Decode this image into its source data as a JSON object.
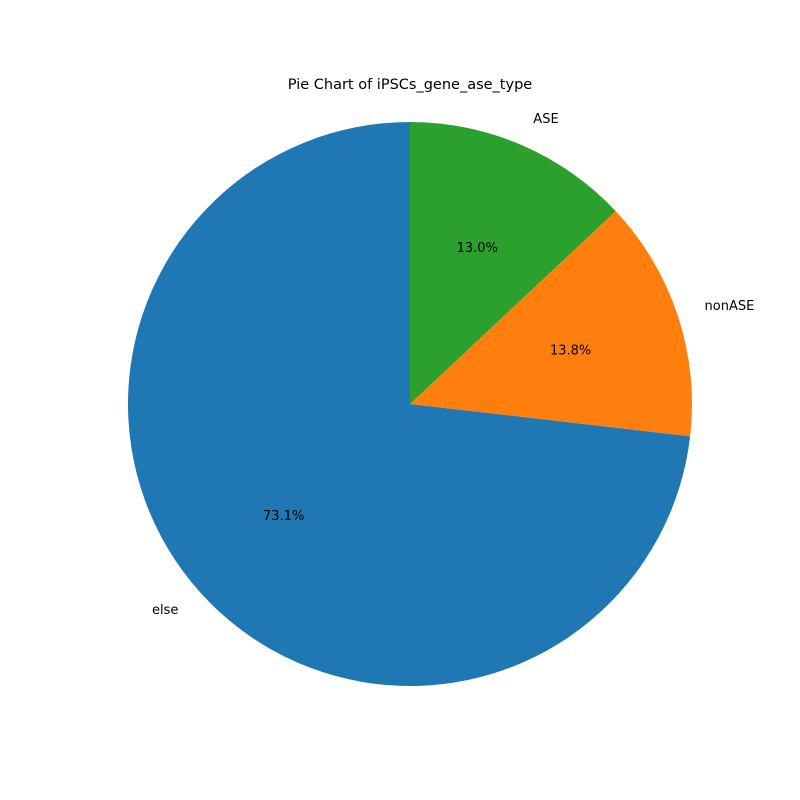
{
  "chart_data": {
    "type": "pie",
    "title": "Pie Chart of iPSCs_gene_ase_type",
    "start_angle_deg": 90,
    "direction": "counterclockwise",
    "slices": [
      {
        "label": "else",
        "percent_label": "73.1%",
        "value": 73.1,
        "color": "#1f77b4"
      },
      {
        "label": "nonASE",
        "percent_label": "13.8%",
        "value": 13.8,
        "color": "#ff7f0e"
      },
      {
        "label": "ASE",
        "percent_label": "13.0%",
        "value": 13.0,
        "color": "#2ca02c"
      }
    ]
  }
}
